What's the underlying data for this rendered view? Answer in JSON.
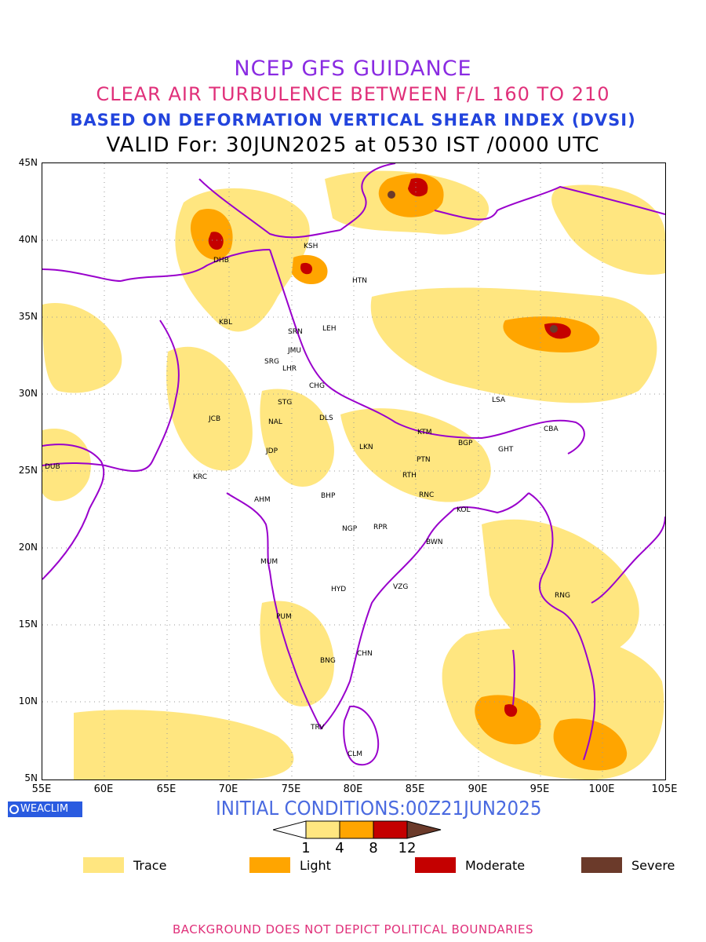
{
  "titles": {
    "line1": "NCEP GFS GUIDANCE",
    "line2": "CLEAR AIR TURBULENCE BETWEEN F/L 160 TO 210",
    "line3": "BASED ON DEFORMATION VERTICAL SHEAR INDEX (DVSI)",
    "line4": "VALID For: 30JUN2025 at 0530 IST /0000 UTC"
  },
  "axes": {
    "lat_labels": [
      "45N",
      "40N",
      "35N",
      "30N",
      "25N",
      "20N",
      "15N",
      "10N",
      "5N"
    ],
    "lon_labels": [
      "55E",
      "60E",
      "65E",
      "70E",
      "75E",
      "80E",
      "85E",
      "90E",
      "95E",
      "100E",
      "105E"
    ]
  },
  "stations": [
    {
      "code": "DHB"
    },
    {
      "code": "KSH"
    },
    {
      "code": "HTN"
    },
    {
      "code": "KBL"
    },
    {
      "code": "SRN"
    },
    {
      "code": "LEH"
    },
    {
      "code": "JMU"
    },
    {
      "code": "SRG"
    },
    {
      "code": "LHR"
    },
    {
      "code": "CHG"
    },
    {
      "code": "STG"
    },
    {
      "code": "LSA"
    },
    {
      "code": "JCB"
    },
    {
      "code": "NAL"
    },
    {
      "code": "DLS"
    },
    {
      "code": "KTM"
    },
    {
      "code": "CBA"
    },
    {
      "code": "BGP"
    },
    {
      "code": "GHT"
    },
    {
      "code": "JDP"
    },
    {
      "code": "LKN"
    },
    {
      "code": "PTN"
    },
    {
      "code": "DUB"
    },
    {
      "code": "KRC"
    },
    {
      "code": "RTH"
    },
    {
      "code": "BHP"
    },
    {
      "code": "AHM"
    },
    {
      "code": "RNC"
    },
    {
      "code": "KOL"
    },
    {
      "code": "NGP"
    },
    {
      "code": "RPR"
    },
    {
      "code": "BWN"
    },
    {
      "code": "MUM"
    },
    {
      "code": "HYD"
    },
    {
      "code": "VZG"
    },
    {
      "code": "RNG"
    },
    {
      "code": "PUM"
    },
    {
      "code": "CHN"
    },
    {
      "code": "BNG"
    },
    {
      "code": "TRV"
    },
    {
      "code": "CLM"
    }
  ],
  "footer": {
    "logo_text": "WEACLIM",
    "initial_conditions": "INITIAL CONDITIONS:00Z21JUN2025",
    "scale_labels": [
      "1",
      "4",
      "8",
      "12"
    ],
    "note": "BACKGROUND DOES NOT DEPICT POLITICAL BOUNDARIES"
  },
  "legend": [
    {
      "label": "Trace",
      "color": "#ffe680"
    },
    {
      "label": "Light",
      "color": "#ffa500"
    },
    {
      "label": "Moderate",
      "color": "#c40000"
    },
    {
      "label": "Severe",
      "color": "#6b3a2a"
    }
  ],
  "colors": {
    "boundary": "#9900cc",
    "trace": "#ffe680",
    "light": "#ffa500",
    "moderate": "#c40000",
    "severe": "#6b3a2a"
  }
}
